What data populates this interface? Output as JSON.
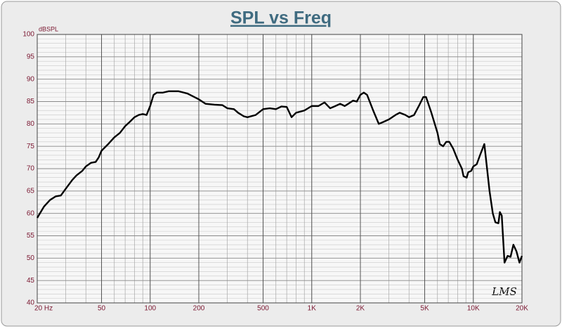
{
  "chart_data": {
    "type": "line",
    "title": "SPL vs Freq",
    "y_label": "dBSPL",
    "annotation": "LMS",
    "xscale": "log",
    "x_minor_grid": true,
    "y_minor_step": 1,
    "grid": true,
    "color": "#000000",
    "x": [
      20,
      22,
      24,
      26,
      28,
      30,
      33,
      35,
      38,
      40,
      43,
      46,
      48,
      50,
      55,
      60,
      65,
      70,
      75,
      80,
      85,
      90,
      95,
      100,
      105,
      110,
      120,
      130,
      150,
      170,
      200,
      220,
      250,
      280,
      300,
      330,
      350,
      380,
      400,
      450,
      500,
      550,
      600,
      650,
      700,
      750,
      800,
      900,
      1000,
      1100,
      1200,
      1300,
      1400,
      1500,
      1600,
      1700,
      1800,
      1900,
      2000,
      2100,
      2200,
      2400,
      2600,
      2800,
      3000,
      3300,
      3500,
      3800,
      4000,
      4300,
      4600,
      4900,
      5100,
      5500,
      6000,
      6200,
      6500,
      6800,
      7100,
      7500,
      8000,
      8500,
      8700,
      9100,
      9300,
      9700,
      10000,
      10500,
      11000,
      11700,
      12600,
      13200,
      13700,
      14300,
      14600,
      15000,
      15600,
      16300,
      17000,
      17700,
      18500,
      19300,
      20000
    ],
    "values": [
      59,
      61.5,
      63,
      63.8,
      64,
      65.5,
      67.5,
      68.5,
      69.5,
      70.5,
      71.3,
      71.5,
      72.5,
      74,
      75.5,
      77,
      78,
      79.5,
      80.5,
      81.5,
      82,
      82.2,
      82,
      84,
      86.5,
      87,
      87,
      87.3,
      87.3,
      86.8,
      85.5,
      84.5,
      84.3,
      84.2,
      83.5,
      83.3,
      82.5,
      81.7,
      81.5,
      82,
      83.3,
      83.5,
      83.3,
      83.9,
      83.8,
      81.5,
      82.5,
      83,
      84,
      84,
      84.8,
      83.5,
      84,
      84.5,
      84,
      84.6,
      85.2,
      85,
      86.5,
      87,
      86.5,
      83,
      80,
      80.5,
      81,
      82,
      82.5,
      82,
      81.5,
      82,
      84,
      86,
      86,
      82.5,
      78,
      75.5,
      75,
      76,
      76,
      74.5,
      72,
      70,
      68.3,
      68,
      69.2,
      69.5,
      70.5,
      71,
      73,
      75.5,
      65,
      60,
      58,
      57.8,
      60.3,
      59.5,
      49,
      50.5,
      50.3,
      53,
      51.5,
      49,
      50.5
    ],
    "xlim": [
      20,
      20000
    ],
    "xticks": [
      {
        "value": 20,
        "label": "20 Hz"
      },
      50,
      100,
      200,
      500,
      {
        "value": 1000,
        "label": "1K"
      },
      {
        "value": 2000,
        "label": "2K"
      },
      {
        "value": 5000,
        "label": "5K"
      },
      {
        "value": 10000,
        "label": "10K"
      },
      {
        "value": 20000,
        "label": "20K"
      }
    ],
    "ylim": [
      40,
      100
    ],
    "yticks": [
      40,
      45,
      50,
      55,
      60,
      65,
      70,
      75,
      80,
      85,
      90,
      95,
      100
    ]
  }
}
